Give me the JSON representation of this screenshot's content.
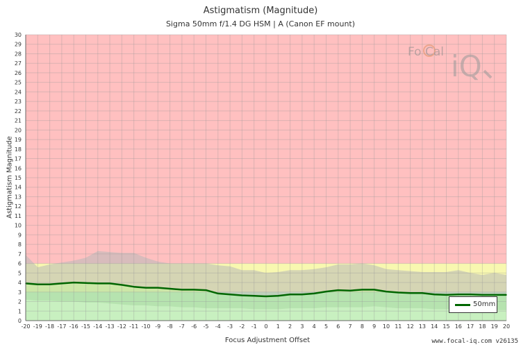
{
  "chart_data": {
    "type": "line",
    "title": "Astigmatism (Magnitude)",
    "subtitle": "Sigma 50mm f/1.4 DG HSM | A (Canon EF mount)",
    "xlabel": "Focus Adjustment Offset",
    "ylabel": "Astigmatism Magnitude",
    "xlim": [
      -20,
      20
    ],
    "ylim": [
      0,
      30
    ],
    "x_ticks": [
      "-20",
      "-19",
      "-18",
      "-17",
      "-16",
      "-15",
      "-14",
      "-13",
      "-12",
      "-11",
      "-10",
      "-9",
      "-8",
      "-7",
      "-6",
      "-5",
      "-4",
      "-3",
      "-2",
      "-1",
      "0",
      "1",
      "2",
      "3",
      "4",
      "5",
      "6",
      "7",
      "8",
      "9",
      "10",
      "11",
      "12",
      "13",
      "14",
      "15",
      "16",
      "17",
      "18",
      "19",
      "20"
    ],
    "y_ticks": [
      "0",
      "1",
      "2",
      "3",
      "4",
      "5",
      "6",
      "7",
      "8",
      "9",
      "10",
      "11",
      "12",
      "13",
      "14",
      "15",
      "16",
      "17",
      "18",
      "19",
      "20",
      "21",
      "22",
      "23",
      "24",
      "25",
      "26",
      "27",
      "28",
      "29",
      "30"
    ],
    "grid": true,
    "zones": [
      {
        "name": "good",
        "from": 0,
        "to": 3,
        "color": "#c8f0c0"
      },
      {
        "name": "acceptable",
        "from": 3,
        "to": 6,
        "color": "#f8f8b0"
      },
      {
        "name": "poor",
        "from": 6,
        "to": 30,
        "color": "#ffc0c0"
      }
    ],
    "series": [
      {
        "name": "50mm",
        "color": "#006600",
        "x": [
          -20,
          -19,
          -18,
          -17,
          -16,
          -15,
          -14,
          -13,
          -12,
          -11,
          -10,
          -9,
          -8,
          -7,
          -6,
          -5,
          -4,
          -3,
          -2,
          -1,
          0,
          1,
          2,
          3,
          4,
          5,
          6,
          7,
          8,
          9,
          10,
          11,
          12,
          13,
          14,
          15,
          16,
          17,
          18,
          19,
          20
        ],
        "values": [
          3.9,
          3.8,
          3.8,
          3.9,
          4.0,
          3.95,
          3.9,
          3.9,
          3.75,
          3.55,
          3.45,
          3.45,
          3.35,
          3.25,
          3.25,
          3.2,
          2.85,
          2.75,
          2.65,
          2.6,
          2.55,
          2.6,
          2.75,
          2.75,
          2.85,
          3.05,
          3.2,
          3.15,
          3.25,
          3.25,
          3.05,
          2.95,
          2.9,
          2.9,
          2.75,
          2.7,
          2.75,
          2.75,
          2.7,
          2.7,
          2.7
        ]
      }
    ],
    "bands": [
      {
        "name": "upper-spread",
        "color": "#b8b8b8",
        "upper": [
          6.9,
          5.6,
          5.9,
          6.1,
          6.3,
          6.6,
          7.3,
          7.2,
          7.1,
          7.1,
          6.6,
          6.2,
          6.0,
          6.0,
          6.0,
          6.0,
          5.8,
          5.7,
          5.3,
          5.3,
          5.0,
          5.1,
          5.3,
          5.3,
          5.4,
          5.6,
          5.9,
          5.9,
          6.0,
          5.8,
          5.4,
          5.3,
          5.2,
          5.1,
          5.1,
          5.1,
          5.3,
          5.0,
          4.8,
          5.0,
          4.8
        ],
        "lower": [
          3.9,
          3.8,
          3.8,
          3.9,
          4.0,
          3.95,
          3.9,
          3.9,
          3.75,
          3.55,
          3.45,
          3.45,
          3.35,
          3.25,
          3.25,
          3.2,
          2.85,
          2.75,
          2.65,
          2.6,
          2.55,
          2.6,
          2.75,
          2.75,
          2.85,
          3.05,
          3.2,
          3.15,
          3.25,
          3.25,
          3.05,
          2.95,
          2.9,
          2.9,
          2.75,
          2.7,
          2.75,
          2.75,
          2.7,
          2.7,
          2.7
        ]
      },
      {
        "name": "lower-spread",
        "color": "#a8d8a0",
        "upper": [
          3.9,
          3.8,
          3.8,
          3.9,
          4.0,
          3.95,
          3.9,
          3.9,
          3.75,
          3.55,
          3.45,
          3.45,
          3.35,
          3.25,
          3.25,
          3.2,
          2.85,
          2.75,
          2.65,
          2.6,
          2.55,
          2.6,
          2.75,
          2.75,
          2.85,
          3.05,
          3.2,
          3.15,
          3.25,
          3.25,
          3.05,
          2.95,
          2.9,
          2.9,
          2.75,
          2.7,
          2.75,
          2.75,
          2.7,
          2.7,
          2.7
        ],
        "lower": [
          2.2,
          2.1,
          2.1,
          2.0,
          2.0,
          1.9,
          1.9,
          1.8,
          1.7,
          1.6,
          1.6,
          1.5,
          1.5,
          1.4,
          1.4,
          1.3,
          1.3,
          1.3,
          1.3,
          1.2,
          1.2,
          1.2,
          1.3,
          1.3,
          1.3,
          1.4,
          1.4,
          1.4,
          1.4,
          1.5,
          1.4,
          1.3,
          1.3,
          1.3,
          1.2,
          1.2,
          1.2,
          1.1,
          1.1,
          1.1,
          1.1
        ]
      }
    ],
    "legend": {
      "position": "bottom-right",
      "label": "50mm"
    }
  },
  "watermark": {
    "brand_a": "Fo",
    "brand_b": "Cal",
    "brand_c": "iQ"
  },
  "credit": "www.focal-iq.com  v26135"
}
